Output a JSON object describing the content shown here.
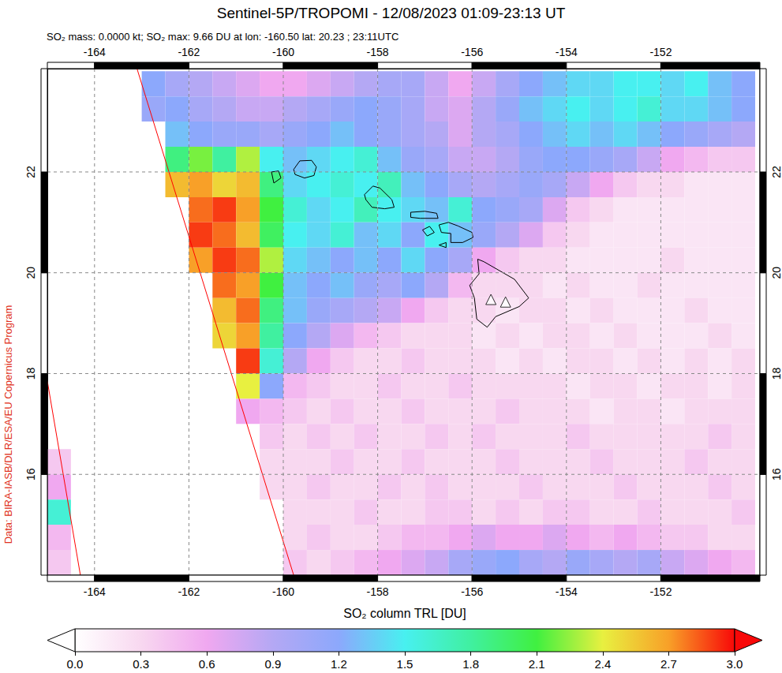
{
  "chart_data": {
    "type": "map",
    "title": "Sentinel-5P/TROPOMI - 12/08/2023 01:09-23:13 UT",
    "subtitle": "SO₂ mass: 0.0000 kt; SO₂ max: 9.66 DU at lon: -160.50 lat: 20.23 ; 23:11UTC",
    "credit": "Data: BIRA-IASB/DLR/ESA/EU Copernicus Program",
    "xlim": [
      -165,
      -149.9
    ],
    "xticks": [
      -164,
      -162,
      -160,
      -158,
      -156,
      -154,
      -152
    ],
    "ylim": [
      14,
      24.05
    ],
    "yticks": [
      16,
      18,
      20,
      22
    ],
    "grid": true,
    "so2": {
      "lons": [
        -164.75,
        -164.25,
        -163.75,
        -163.25,
        -162.75,
        -162.25,
        -161.75,
        -161.25,
        -160.75,
        -160.25,
        -159.75,
        -159.25,
        -158.75,
        -158.25,
        -157.75,
        -157.25,
        -156.75,
        -156.25,
        -155.75,
        -155.25,
        -154.75,
        -154.25,
        -153.75,
        -153.25,
        -152.75,
        -152.25,
        -151.75,
        -151.25,
        -150.75,
        -150.25
      ],
      "lats": [
        23.75,
        23.25,
        22.75,
        22.25,
        21.75,
        21.25,
        20.75,
        20.25,
        19.75,
        19.25,
        18.75,
        18.25,
        17.75,
        17.25,
        16.75,
        16.25,
        15.75,
        15.25,
        14.75,
        14.25
      ],
      "values": [
        [
          null,
          null,
          null,
          null,
          1.2,
          1.0,
          0.9,
          0.8,
          0.7,
          0.6,
          0.6,
          0.7,
          0.8,
          0.9,
          1.0,
          1.0,
          0.8,
          0.6,
          0.8,
          1.0,
          1.2,
          1.3,
          1.4,
          1.4,
          1.5,
          1.5,
          1.4,
          1.5,
          1.3,
          1.2
        ],
        [
          null,
          null,
          null,
          null,
          1.1,
          1.2,
          1.0,
          0.9,
          0.8,
          0.8,
          0.9,
          1.0,
          1.1,
          1.2,
          1.1,
          1.0,
          0.8,
          0.7,
          0.9,
          1.1,
          1.3,
          1.4,
          1.5,
          1.4,
          1.5,
          1.6,
          1.4,
          1.4,
          1.3,
          1.2
        ],
        [
          null,
          null,
          null,
          null,
          null,
          1.3,
          1.2,
          1.1,
          1.1,
          1.0,
          1.1,
          1.2,
          1.3,
          1.2,
          1.1,
          1.0,
          0.9,
          0.7,
          0.9,
          1.0,
          1.2,
          1.3,
          1.4,
          1.3,
          1.4,
          1.3,
          1.2,
          1.1,
          1.0,
          0.9
        ],
        [
          null,
          null,
          null,
          null,
          null,
          1.9,
          2.2,
          1.8,
          2.3,
          1.5,
          1.3,
          1.4,
          1.5,
          1.6,
          1.3,
          1.1,
          1.0,
          0.8,
          0.8,
          0.9,
          1.1,
          1.2,
          1.2,
          1.1,
          1.0,
          0.8,
          0.6,
          0.5,
          0.4,
          0.4
        ],
        [
          null,
          null,
          null,
          null,
          null,
          2.6,
          2.7,
          2.5,
          2.6,
          1.9,
          1.4,
          1.5,
          1.6,
          1.5,
          1.7,
          1.3,
          1.2,
          1.0,
          0.9,
          1.0,
          1.1,
          1.0,
          0.8,
          0.6,
          0.4,
          0.3,
          0.3,
          0.2,
          0.2,
          0.2
        ],
        [
          null,
          null,
          null,
          null,
          null,
          null,
          2.8,
          2.9,
          2.7,
          2.1,
          1.6,
          1.4,
          1.5,
          1.7,
          1.5,
          1.4,
          1.3,
          1.6,
          1.2,
          1.1,
          1.0,
          0.7,
          0.4,
          0.3,
          0.2,
          0.2,
          0.2,
          0.2,
          0.2,
          0.2
        ],
        [
          null,
          null,
          null,
          null,
          null,
          null,
          2.9,
          2.8,
          2.6,
          2.0,
          1.5,
          1.4,
          1.6,
          1.3,
          1.4,
          1.2,
          1.5,
          1.3,
          1.1,
          0.9,
          0.7,
          0.4,
          0.3,
          0.2,
          0.2,
          0.2,
          0.2,
          0.2,
          0.2,
          0.2
        ],
        [
          null,
          null,
          null,
          null,
          null,
          null,
          2.7,
          2.9,
          2.8,
          2.3,
          1.4,
          1.3,
          1.2,
          1.3,
          1.2,
          1.4,
          1.2,
          1.0,
          0.6,
          0.4,
          0.3,
          0.3,
          0.2,
          0.2,
          0.2,
          0.2,
          0.3,
          0.2,
          0.2,
          0.2
        ],
        [
          null,
          null,
          null,
          null,
          null,
          null,
          null,
          2.8,
          2.7,
          2.1,
          1.3,
          1.2,
          1.3,
          1.1,
          1.0,
          1.2,
          0.9,
          0.5,
          0.3,
          0.3,
          0.3,
          0.2,
          0.3,
          0.2,
          0.2,
          0.3,
          0.2,
          0.2,
          0.2,
          0.2
        ],
        [
          null,
          null,
          null,
          null,
          null,
          null,
          null,
          2.6,
          2.8,
          1.9,
          1.3,
          1.1,
          1.0,
          0.9,
          0.8,
          0.6,
          0.4,
          0.3,
          0.3,
          0.2,
          0.3,
          0.3,
          0.2,
          0.3,
          0.2,
          0.2,
          0.2,
          0.3,
          0.2,
          0.2
        ],
        [
          null,
          null,
          null,
          null,
          null,
          null,
          null,
          2.5,
          2.7,
          1.8,
          1.2,
          0.9,
          0.7,
          0.5,
          0.4,
          0.3,
          0.3,
          0.3,
          0.2,
          0.3,
          0.2,
          0.3,
          0.3,
          0.2,
          0.3,
          0.2,
          0.2,
          0.2,
          0.3,
          0.2
        ],
        [
          null,
          null,
          null,
          null,
          null,
          null,
          null,
          null,
          2.9,
          1.6,
          0.9,
          0.6,
          0.4,
          0.3,
          0.3,
          0.4,
          0.3,
          0.3,
          0.3,
          0.2,
          0.3,
          0.2,
          0.3,
          0.3,
          0.2,
          0.3,
          0.2,
          0.3,
          0.2,
          0.3
        ],
        [
          null,
          null,
          null,
          null,
          null,
          null,
          null,
          null,
          2.4,
          1.2,
          0.5,
          0.4,
          0.3,
          0.3,
          0.4,
          0.3,
          0.3,
          0.4,
          0.3,
          0.3,
          0.3,
          0.3,
          0.2,
          0.3,
          0.3,
          0.2,
          0.3,
          0.3,
          0.2,
          0.3
        ],
        [
          null,
          null,
          null,
          null,
          null,
          null,
          null,
          null,
          0.6,
          0.5,
          0.4,
          0.3,
          0.4,
          0.3,
          0.3,
          0.4,
          0.3,
          0.3,
          0.3,
          0.4,
          0.3,
          0.3,
          0.3,
          0.2,
          0.3,
          0.3,
          0.2,
          0.3,
          0.3,
          0.3
        ],
        [
          null,
          null,
          null,
          null,
          null,
          null,
          null,
          null,
          null,
          0.4,
          0.3,
          0.4,
          0.3,
          0.4,
          0.3,
          0.3,
          0.4,
          0.3,
          0.4,
          0.3,
          0.3,
          0.3,
          0.4,
          0.3,
          0.3,
          0.3,
          0.3,
          0.3,
          0.4,
          0.3
        ],
        [
          0.4,
          null,
          null,
          null,
          null,
          null,
          null,
          null,
          null,
          0.3,
          0.3,
          0.3,
          0.4,
          0.3,
          0.3,
          0.4,
          0.3,
          0.3,
          0.3,
          0.4,
          0.3,
          0.3,
          0.3,
          0.4,
          0.3,
          0.3,
          0.3,
          0.4,
          0.3,
          0.3
        ],
        [
          0.6,
          null,
          null,
          null,
          null,
          null,
          null,
          null,
          null,
          0.3,
          0.3,
          0.4,
          0.3,
          0.3,
          0.4,
          0.3,
          0.4,
          0.3,
          0.3,
          0.3,
          0.4,
          0.3,
          0.3,
          0.3,
          0.4,
          0.3,
          0.3,
          0.3,
          0.4,
          0.3
        ],
        [
          1.6,
          null,
          null,
          null,
          null,
          null,
          null,
          null,
          null,
          null,
          0.3,
          0.3,
          0.3,
          0.4,
          0.3,
          0.3,
          0.4,
          0.4,
          0.3,
          0.4,
          0.3,
          0.4,
          0.4,
          0.3,
          0.3,
          0.4,
          0.3,
          0.3,
          0.3,
          0.4
        ],
        [
          0.5,
          null,
          null,
          null,
          null,
          null,
          null,
          null,
          null,
          null,
          0.3,
          0.4,
          0.3,
          0.3,
          0.4,
          0.5,
          0.5,
          0.6,
          0.7,
          0.6,
          0.6,
          0.7,
          0.6,
          0.5,
          0.6,
          0.5,
          0.4,
          0.4,
          0.3,
          0.3
        ],
        [
          0.4,
          null,
          null,
          null,
          null,
          null,
          null,
          null,
          null,
          null,
          0.4,
          0.3,
          0.4,
          0.5,
          0.6,
          0.7,
          0.8,
          1.0,
          1.1,
          1.2,
          1.0,
          0.9,
          1.1,
          1.0,
          0.9,
          1.0,
          0.8,
          0.7,
          0.6,
          0.5
        ]
      ]
    },
    "coastlines": [
      [
        [
          -159.78,
          22.05
        ],
        [
          -159.65,
          22.22
        ],
        [
          -159.4,
          22.23
        ],
        [
          -159.3,
          22.1
        ],
        [
          -159.35,
          21.93
        ],
        [
          -159.55,
          21.88
        ],
        [
          -159.75,
          21.95
        ]
      ],
      [
        [
          -160.25,
          22.0
        ],
        [
          -160.1,
          22.02
        ],
        [
          -160.05,
          21.88
        ],
        [
          -160.2,
          21.78
        ]
      ],
      [
        [
          -158.28,
          21.55
        ],
        [
          -158.1,
          21.72
        ],
        [
          -157.95,
          21.68
        ],
        [
          -157.7,
          21.45
        ],
        [
          -157.65,
          21.3
        ],
        [
          -157.85,
          21.27
        ],
        [
          -158.12,
          21.3
        ],
        [
          -158.25,
          21.45
        ]
      ],
      [
        [
          -157.3,
          21.2
        ],
        [
          -157.0,
          21.22
        ],
        [
          -156.75,
          21.18
        ],
        [
          -156.72,
          21.08
        ],
        [
          -157.1,
          21.08
        ],
        [
          -157.3,
          21.1
        ]
      ],
      [
        [
          -157.05,
          20.85
        ],
        [
          -156.9,
          20.92
        ],
        [
          -156.8,
          20.8
        ],
        [
          -156.95,
          20.73
        ]
      ],
      [
        [
          -156.7,
          20.95
        ],
        [
          -156.5,
          21.0
        ],
        [
          -156.3,
          20.93
        ],
        [
          -156.0,
          20.8
        ],
        [
          -155.98,
          20.7
        ],
        [
          -156.2,
          20.6
        ],
        [
          -156.45,
          20.6
        ],
        [
          -156.45,
          20.78
        ],
        [
          -156.65,
          20.8
        ]
      ],
      [
        [
          -156.7,
          20.55
        ],
        [
          -156.55,
          20.6
        ],
        [
          -156.55,
          20.5
        ]
      ],
      [
        [
          -155.88,
          20.27
        ],
        [
          -155.75,
          20.22
        ],
        [
          -155.1,
          19.87
        ],
        [
          -154.8,
          19.5
        ],
        [
          -155.0,
          19.33
        ],
        [
          -155.5,
          19.13
        ],
        [
          -155.68,
          18.92
        ],
        [
          -155.9,
          19.08
        ],
        [
          -155.95,
          19.5
        ],
        [
          -156.05,
          19.75
        ],
        [
          -155.85,
          19.98
        ],
        [
          -155.88,
          20.27
        ]
      ]
    ],
    "volcanoes": {
      "marker": "triangle",
      "points": [
        [
          -155.6,
          19.47
        ],
        [
          -155.29,
          19.42
        ]
      ]
    },
    "swath_edges": {
      "color": "#ff0000",
      "lines": [
        [
          [
            -163.1,
            24.05
          ],
          [
            -159.78,
            14
          ]
        ],
        [
          [
            -165,
            17.85
          ],
          [
            -164.3,
            14
          ]
        ]
      ]
    },
    "colorbar": {
      "label": "SO₂ column TRL [DU]",
      "range": [
        0,
        3
      ],
      "ticks": [
        {
          "value": 0,
          "label": "0.0"
        },
        0.3,
        0.6,
        0.9,
        1.2,
        1.5,
        1.8,
        2.1,
        2.4,
        2.7,
        {
          "value": 3,
          "label": "3.0"
        }
      ],
      "colors": [
        "#ffffff",
        "#f8d8f0",
        "#f0a8f0",
        "#b4a8f4",
        "#8ca8fc",
        "#48f0f0",
        "#40f0a0",
        "#40f040",
        "#e8f040",
        "#f8a028",
        "#f80808"
      ]
    }
  }
}
